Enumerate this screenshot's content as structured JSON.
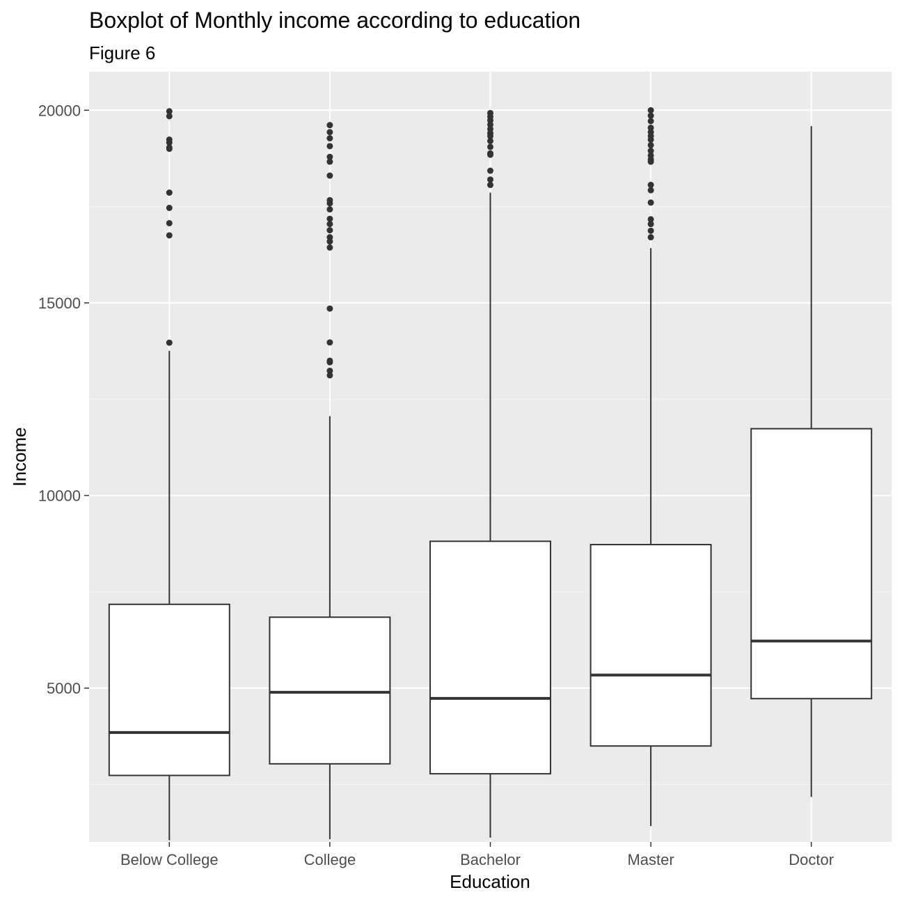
{
  "chart_data": {
    "type": "boxplot",
    "title": "Boxplot of Monthly income according to education",
    "subtitle": "Figure 6",
    "xlabel": "Education",
    "ylabel": "Income",
    "ylim": [
      1009,
      20999
    ],
    "y_ticks": [
      5000,
      10000,
      15000,
      20000
    ],
    "y_tick_labels": [
      "5000",
      "10000",
      "15000",
      "20000"
    ],
    "grid": true,
    "categories": [
      "Below College",
      "College",
      "Bachelor",
      "Master",
      "Doctor"
    ],
    "boxes": [
      {
        "category": "Below College",
        "min": 1051,
        "q1": 2735,
        "median": 3849,
        "q3": 7176,
        "max": 13756,
        "outliers": [
          19973,
          19845,
          19237,
          19161,
          19033,
          18999,
          17861,
          17465,
          17068,
          16752,
          13966
        ]
      },
      {
        "category": "College",
        "min": 1081,
        "q1": 3036,
        "median": 4892,
        "q3": 6842,
        "max": 12061,
        "outliers": [
          19613,
          19431,
          19272,
          19068,
          18789,
          18665,
          18303,
          17665,
          17584,
          17426,
          17181,
          17046,
          16885,
          16704,
          16595,
          16437,
          14852,
          13973,
          13499,
          13458,
          13237,
          13120
        ]
      },
      {
        "category": "Bachelor",
        "min": 1118,
        "q1": 2778,
        "median": 4735,
        "q3": 8812,
        "max": 17861,
        "outliers": [
          19926,
          19833,
          19740,
          19627,
          19513,
          19406,
          19328,
          19202,
          19049,
          18880,
          18844,
          18430,
          18200,
          18061
        ]
      },
      {
        "category": "Master",
        "min": 1420,
        "q1": 3499,
        "median": 5341,
        "q3": 8726,
        "max": 16422,
        "outliers": [
          19999,
          19859,
          19717,
          19545,
          19431,
          19328,
          19237,
          19094,
          18947,
          18824,
          18722,
          18665,
          18061,
          17924,
          17603,
          17169,
          17046,
          16872,
          16704
        ]
      },
      {
        "category": "Doctor",
        "min": 2176,
        "q1": 4728,
        "median": 6224,
        "q3": 11734,
        "max": 19586,
        "outliers": []
      }
    ],
    "colors": {
      "panel_background": "#ebebeb",
      "grid_major": "#ffffff",
      "grid_minor": "#f5f5f5",
      "box_fill": "#ffffff",
      "box_stroke": "#333333",
      "outlier": "#333333",
      "tick_label": "#4d4d4d"
    }
  }
}
